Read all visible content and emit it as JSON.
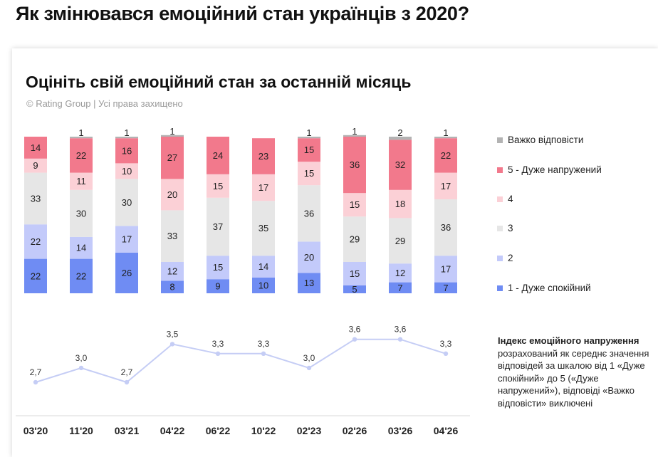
{
  "header": {
    "main_title": "Як змінювався емоційний стан українців з 2020?",
    "chart_title": "Оцініть свій емоційний стан за останній місяць",
    "copyright": "© Rating Group | Усі права захищено"
  },
  "colors": {
    "difficult": "#b3b3b3",
    "very_tense": "#f2798c",
    "four": "#fbd0d6",
    "three": "#e6e6e6",
    "two": "#c3cafa",
    "very_calm": "#6f8cf3",
    "line": "#c5cdf5"
  },
  "note": {
    "title": "Індекс емоційного напруження",
    "text": "розрахований як середнє значення відповідей за шкалою від 1 «Дуже спокійний» до 5 («Дуже напружений»), відповіді «Важко відповісти» виключені"
  },
  "chart_data": [
    {
      "type": "bar",
      "stacked": true,
      "categories": [
        "03'20",
        "11'20",
        "03'21",
        "04'22",
        "06'22",
        "10'22",
        "02'23",
        "02'26",
        "03'26",
        "04'26"
      ],
      "series": [
        {
          "name": "1 - Дуже спокійний",
          "key": "very_calm",
          "values": [
            22,
            22,
            26,
            8,
            9,
            10,
            13,
            5,
            7,
            7
          ]
        },
        {
          "name": "2",
          "key": "two",
          "values": [
            22,
            14,
            17,
            12,
            15,
            14,
            20,
            15,
            12,
            17
          ]
        },
        {
          "name": "3",
          "key": "three",
          "values": [
            33,
            30,
            30,
            33,
            37,
            35,
            36,
            29,
            29,
            36
          ]
        },
        {
          "name": "4",
          "key": "four",
          "values": [
            9,
            11,
            10,
            20,
            15,
            17,
            15,
            15,
            18,
            17
          ]
        },
        {
          "name": "5 - Дуже напружений",
          "key": "very_tense",
          "values": [
            14,
            22,
            16,
            27,
            24,
            23,
            15,
            36,
            32,
            22
          ]
        },
        {
          "name": "Важко відповісти",
          "key": "difficult",
          "values": [
            null,
            1,
            1,
            1,
            null,
            null,
            1,
            1,
            2,
            1
          ]
        }
      ],
      "legend": [
        "Важко відповісти",
        "5 - Дуже напружений",
        "4",
        "3",
        "2",
        "1 - Дуже спокійний"
      ],
      "unit": "%"
    },
    {
      "type": "line",
      "title": "Індекс емоційного напруження",
      "categories": [
        "03'20",
        "11'20",
        "03'21",
        "04'22",
        "06'22",
        "10'22",
        "02'23",
        "02'26",
        "03'26",
        "04'26"
      ],
      "values": [
        2.7,
        3.0,
        2.7,
        3.5,
        3.3,
        3.3,
        3.0,
        3.6,
        3.6,
        3.3
      ],
      "labels": [
        "2,7",
        "3,0",
        "2,7",
        "3,5",
        "3,3",
        "3,3",
        "3,0",
        "3,6",
        "3,6",
        "3,3"
      ],
      "ylim": [
        2.7,
        3.6
      ]
    }
  ]
}
